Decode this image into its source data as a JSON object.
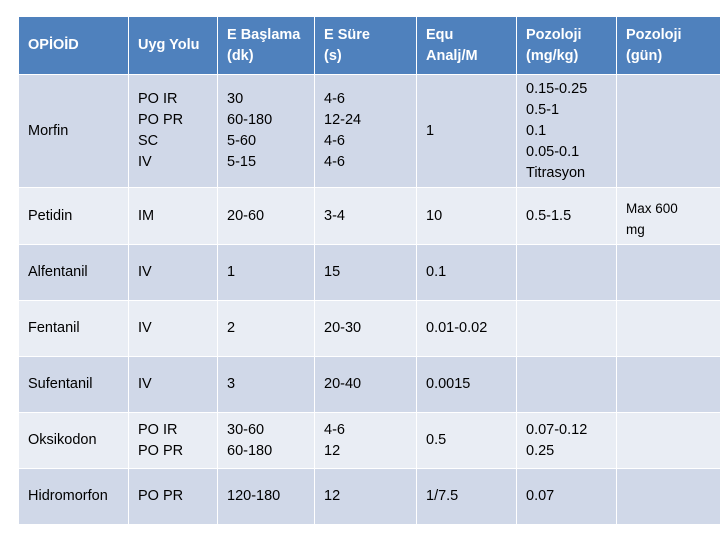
{
  "columns": [
    "OPİOİD",
    "Uyg Yolu",
    "E Başlama (dk)",
    "E Süre (s)",
    "Equ Analj/M",
    "Pozoloji (mg/kg)",
    "Pozoloji (gün)"
  ],
  "columns_lines": [
    [
      "OPİOİD"
    ],
    [
      "Uyg Yolu"
    ],
    [
      "E Başlama",
      "(dk)"
    ],
    [
      "E Süre",
      "(s)"
    ],
    [
      "Equ",
      "Analj/M"
    ],
    [
      "Pozoloji",
      "(mg/kg)"
    ],
    [
      "Pozoloji",
      "(gün)"
    ]
  ],
  "rows": [
    {
      "opioid": "Morfin",
      "route": [
        "PO IR",
        "PO PR",
        "SC",
        "IV"
      ],
      "onset": [
        "30",
        "60-180",
        "5-60",
        "5-15"
      ],
      "duration": [
        "4-6",
        "12-24",
        "4-6",
        "4-6"
      ],
      "equianalgesic": "1",
      "dose_mgkg": [
        "0.15-0.25",
        "0.5-1",
        "0.1",
        "0.05-0.1",
        "Titrasyon"
      ]
    },
    {
      "opioid": "Petidin",
      "route": [
        "IM"
      ],
      "onset": [
        "20-60"
      ],
      "duration": [
        "3-4"
      ],
      "equianalgesic": "10",
      "dose_mgkg": [
        "0.5-1.5"
      ]
    },
    {
      "opioid": "Alfentanil",
      "route": [
        "IV"
      ],
      "onset": [
        "1"
      ],
      "duration": [
        "15"
      ],
      "equianalgesic": "0.1",
      "dose_mgkg": []
    },
    {
      "opioid": "Fentanil",
      "route": [
        "IV"
      ],
      "onset": [
        "2"
      ],
      "duration": [
        "20-30"
      ],
      "equianalgesic": "0.01-0.02",
      "dose_mgkg": []
    },
    {
      "opioid": "Sufentanil",
      "route": [
        "IV"
      ],
      "onset": [
        "3"
      ],
      "duration": [
        "20-40"
      ],
      "equianalgesic": "0.0015",
      "dose_mgkg": []
    },
    {
      "opioid": "Oksikodon",
      "route": [
        "PO IR",
        "PO PR"
      ],
      "onset": [
        "30-60",
        "60-180"
      ],
      "duration": [
        "4-6",
        "12"
      ],
      "equianalgesic": "0.5",
      "dose_mgkg": [
        "0.07-0.12",
        "0.25"
      ]
    },
    {
      "opioid": "Hidromorfon",
      "route": [
        "PO PR"
      ],
      "onset": [
        "120-180"
      ],
      "duration": [
        "12"
      ],
      "equianalgesic": "1/7.5",
      "dose_mgkg": [
        "0.07"
      ]
    }
  ],
  "daily_dose": [
    "Max 600",
    "mg"
  ],
  "colors": {
    "header": "#4f81bd",
    "row_dark": "#d0d8e8",
    "row_light": "#e9edf4",
    "border": "#ffffff"
  }
}
